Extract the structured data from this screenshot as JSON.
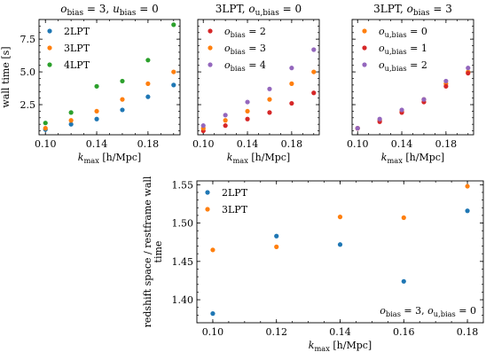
{
  "chart_data": [
    {
      "type": "scatter",
      "title": "o_bias = 3, u_bias = 0",
      "xlabel": "k_max [h/Mpc]",
      "ylabel": "wall time [s]",
      "xlim": [
        0.095,
        0.205
      ],
      "ylim": [
        0.2,
        9.0
      ],
      "xticks": [
        "0.10",
        "0.14",
        "0.18"
      ],
      "yticks": [
        "2.5",
        "5.0",
        "7.5"
      ],
      "legend_position": "top-left",
      "series": [
        {
          "name": "2LPT",
          "color": "#1f77b4",
          "x": [
            0.1,
            0.12,
            0.14,
            0.16,
            0.18,
            0.2
          ],
          "y": [
            0.6,
            1.0,
            1.4,
            2.1,
            3.1,
            4.0
          ]
        },
        {
          "name": "3LPT",
          "color": "#ff7f0e",
          "x": [
            0.1,
            0.12,
            0.14,
            0.16,
            0.18,
            0.2
          ],
          "y": [
            0.7,
            1.3,
            2.0,
            2.9,
            4.1,
            5.0
          ]
        },
        {
          "name": "4LPT",
          "color": "#2ca02c",
          "x": [
            0.1,
            0.12,
            0.14,
            0.16,
            0.18,
            0.2
          ],
          "y": [
            1.1,
            1.9,
            3.9,
            4.3,
            5.9,
            8.6
          ]
        }
      ]
    },
    {
      "type": "scatter",
      "title": "3LPT, o_u,bias = 0",
      "xlabel": "k_max [h/Mpc]",
      "ylabel": "",
      "xlim": [
        0.095,
        0.205
      ],
      "ylim": [
        0.2,
        9.0
      ],
      "xticks": [
        "0.10",
        "0.14",
        "0.18"
      ],
      "yticks": [],
      "legend_position": "top-center",
      "series": [
        {
          "name": "o_bias = 2",
          "color": "#d62728",
          "x": [
            0.1,
            0.12,
            0.14,
            0.16,
            0.18,
            0.2
          ],
          "y": [
            0.5,
            0.9,
            1.4,
            1.9,
            2.6,
            3.4
          ]
        },
        {
          "name": "o_bias = 3",
          "color": "#ff7f0e",
          "x": [
            0.1,
            0.12,
            0.14,
            0.16,
            0.18,
            0.2
          ],
          "y": [
            0.7,
            1.3,
            2.0,
            2.9,
            4.1,
            5.0
          ]
        },
        {
          "name": "o_bias = 4",
          "color": "#9467bd",
          "x": [
            0.1,
            0.12,
            0.14,
            0.16,
            0.18,
            0.2
          ],
          "y": [
            0.9,
            1.7,
            2.7,
            3.7,
            5.3,
            6.7
          ]
        }
      ]
    },
    {
      "type": "scatter",
      "title": "3LPT, o_bias = 3",
      "xlabel": "k_max [h/Mpc]",
      "ylabel": "",
      "xlim": [
        0.095,
        0.205
      ],
      "ylim": [
        0.2,
        9.0
      ],
      "xticks": [
        "0.10",
        "0.14",
        "0.18"
      ],
      "yticks": [],
      "legend_position": "top-center",
      "series": [
        {
          "name": "o_u,bias = 0",
          "color": "#ff7f0e",
          "x": [
            0.1,
            0.12,
            0.14,
            0.16,
            0.18,
            0.2
          ],
          "y": [
            0.7,
            1.3,
            2.0,
            2.9,
            4.1,
            5.0
          ]
        },
        {
          "name": "o_u,bias = 1",
          "color": "#d62728",
          "x": [
            0.1,
            0.12,
            0.14,
            0.16,
            0.18,
            0.2
          ],
          "y": [
            0.7,
            1.2,
            1.9,
            2.7,
            3.9,
            4.9
          ]
        },
        {
          "name": "o_u,bias = 2",
          "color": "#9467bd",
          "x": [
            0.1,
            0.12,
            0.14,
            0.16,
            0.18,
            0.2
          ],
          "y": [
            0.7,
            1.4,
            2.1,
            2.9,
            4.3,
            5.3
          ]
        }
      ]
    },
    {
      "type": "scatter",
      "title": "",
      "xlabel": "k_max [h/Mpc]",
      "ylabel": "redshift space / restframe wall time",
      "annotation": "o_bias = 3, o_u,bias = 0",
      "xlim": [
        0.095,
        0.185
      ],
      "ylim": [
        1.37,
        1.555
      ],
      "xticks": [
        "0.10",
        "0.12",
        "0.14",
        "0.16",
        "0.18"
      ],
      "yticks": [
        "1.40",
        "1.45",
        "1.50",
        "1.55"
      ],
      "legend_position": "top-left",
      "series": [
        {
          "name": "2LPT",
          "color": "#1f77b4",
          "x": [
            0.1,
            0.12,
            0.14,
            0.16,
            0.18
          ],
          "y": [
            1.382,
            1.483,
            1.472,
            1.424,
            1.516
          ]
        },
        {
          "name": "3LPT",
          "color": "#ff7f0e",
          "x": [
            0.1,
            0.12,
            0.14,
            0.16,
            0.18
          ],
          "y": [
            1.465,
            1.469,
            1.508,
            1.507,
            1.548
          ]
        }
      ]
    }
  ]
}
